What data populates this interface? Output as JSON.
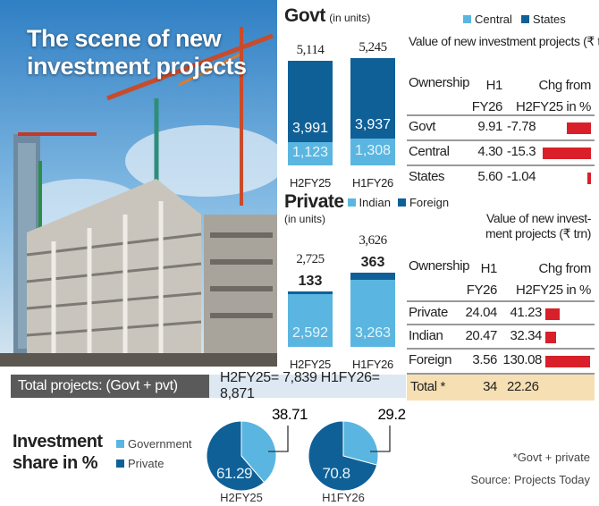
{
  "title": "The scene of new investment projects",
  "colors": {
    "light_blue": "#5ab6e0",
    "dark_blue": "#0f6097",
    "red": "#d9202a",
    "gray": "#5a5a5a",
    "pale_blue": "#dde8f3",
    "beige": "#f6dfb3"
  },
  "totals_bar": {
    "label": "Total projects: (Govt + pvt)",
    "values": "H2FY25= 7,839  H1FY26= 8,871"
  },
  "footnote": "*Govt + private",
  "source": "Source: Projects Today",
  "chart_data": [
    {
      "type": "bar",
      "stacked": true,
      "title": "Govt",
      "subtitle": "(in units)",
      "categories": [
        "H2FY25",
        "H1FY26"
      ],
      "series": [
        {
          "name": "Central",
          "values": [
            1123,
            1308
          ],
          "color": "#5ab6e0"
        },
        {
          "name": "States",
          "values": [
            3991,
            3937
          ],
          "color": "#0f6097"
        }
      ],
      "totals": [
        "5,114",
        "5,245"
      ]
    },
    {
      "type": "table",
      "title": "Value of new investment projects (₹ trn)",
      "columns": [
        "Ownership",
        "H1 FY26",
        "Chg from H2FY25 in %"
      ],
      "rows": [
        {
          "name": "Govt",
          "h1": "9.91",
          "chg": "-7.78",
          "chg_value": -7.78
        },
        {
          "name": "Central",
          "h1": "4.30",
          "chg": "-15.3",
          "chg_value": -15.3
        },
        {
          "name": "States",
          "h1": "5.60",
          "chg": "-1.04",
          "chg_value": -1.04
        }
      ]
    },
    {
      "type": "bar",
      "stacked": true,
      "title": "Private",
      "subtitle": "(in units)",
      "categories": [
        "H2FY25",
        "H1FY26"
      ],
      "series": [
        {
          "name": "Indian",
          "values": [
            2592,
            3263
          ],
          "color": "#5ab6e0"
        },
        {
          "name": "Foreign",
          "values": [
            133,
            363
          ],
          "color": "#0f6097"
        }
      ],
      "totals": [
        "2,725",
        "3,626"
      ]
    },
    {
      "type": "table",
      "title_lines": [
        "Value of new invest-",
        "ment projects (₹ trn)"
      ],
      "columns": [
        "Ownership",
        "H1 FY26",
        "Chg from H2FY25 in %"
      ],
      "rows": [
        {
          "name": "Private",
          "h1": "24.04",
          "chg": "41.23",
          "chg_value": 41.23
        },
        {
          "name": "Indian",
          "h1": "20.47",
          "chg": "32.34",
          "chg_value": 32.34
        },
        {
          "name": "Foreign",
          "h1": "3.56",
          "chg": "130.08",
          "chg_value": 130.08
        }
      ],
      "total_row": {
        "name": "Total *",
        "h1": "34",
        "chg": "22.26"
      }
    },
    {
      "type": "pie",
      "title": "Investment share in %",
      "legend": [
        "Government",
        "Private"
      ],
      "pies": [
        {
          "label": "H2FY25",
          "values": [
            38.71,
            61.29
          ],
          "labels": [
            "38.71",
            "61.29"
          ]
        },
        {
          "label": "H1FY26",
          "values": [
            29.2,
            70.8
          ],
          "labels": [
            "29.2",
            "70.8"
          ]
        }
      ]
    }
  ]
}
